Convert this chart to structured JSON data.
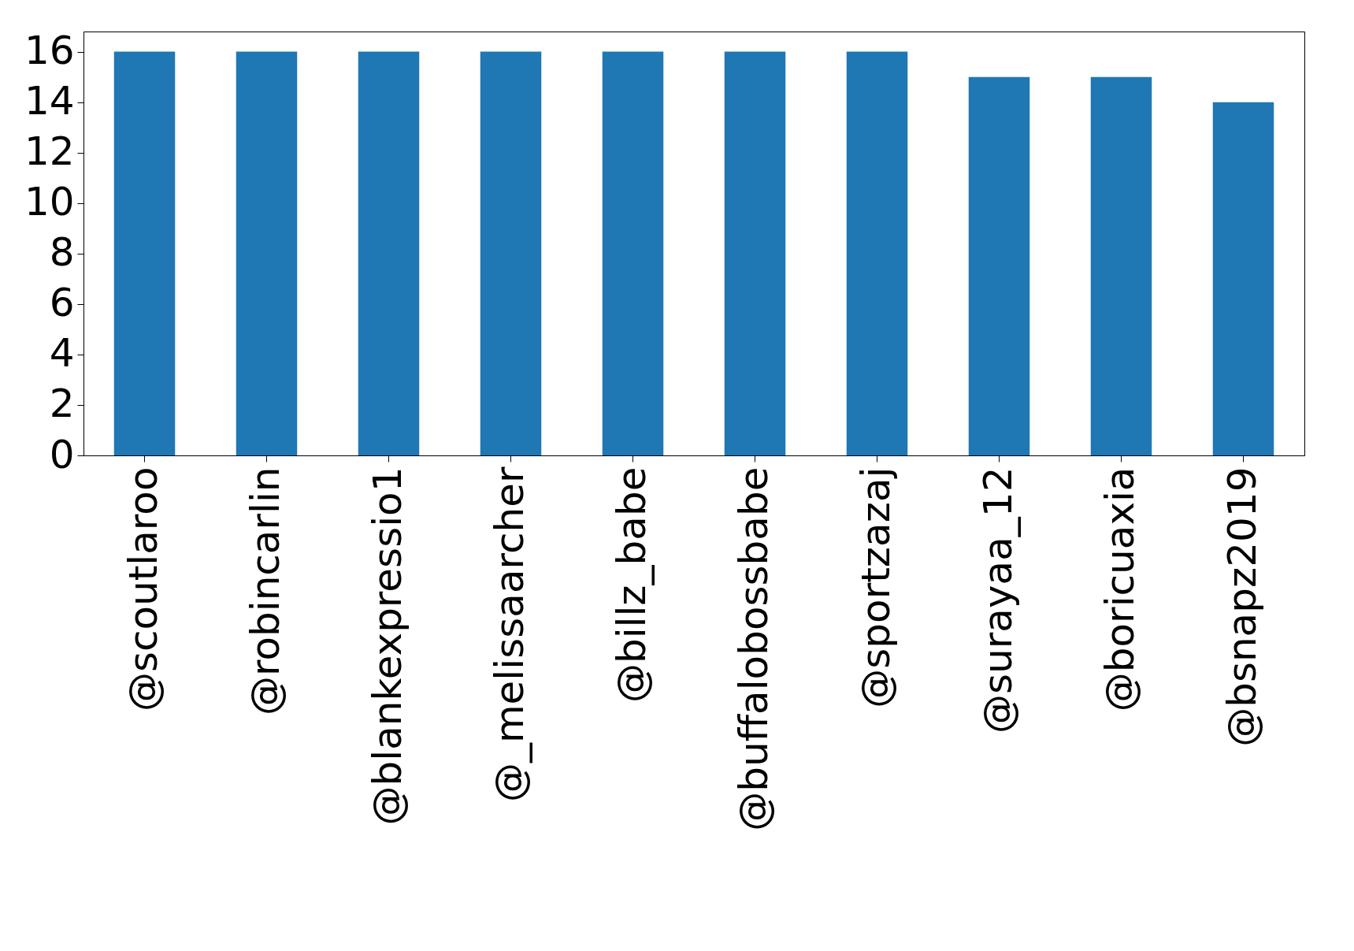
{
  "chart_data": {
    "type": "bar",
    "categories": [
      "@scoutlaroo",
      "@robincarlin",
      "@blankexpressio1",
      "@_melissaarcher",
      "@billz_babe",
      "@buffalobossbabe",
      "@sportzazaj",
      "@surayaa_12",
      "@boricuaxia",
      "@bsnapz2019"
    ],
    "values": [
      16,
      16,
      16,
      16,
      16,
      16,
      16,
      15,
      15,
      14
    ],
    "color": "#1f77b4",
    "ylim": [
      0,
      16.8
    ],
    "yticks": [
      0,
      2,
      4,
      6,
      8,
      10,
      12,
      14,
      16
    ],
    "grid": false
  }
}
